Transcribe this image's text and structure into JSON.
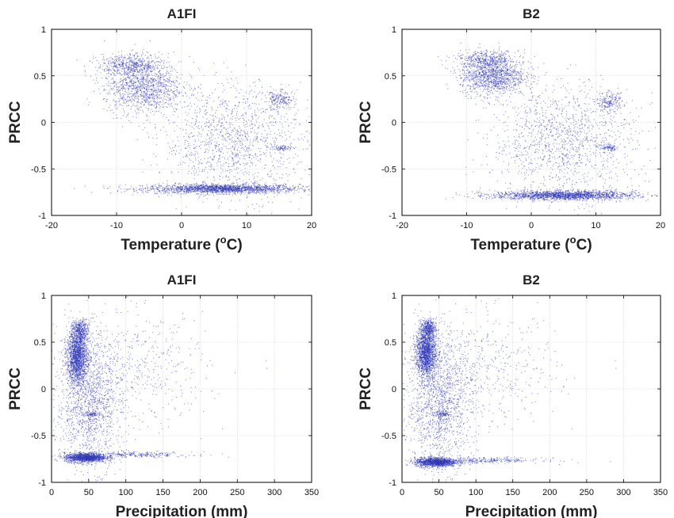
{
  "chart_data": [
    {
      "type": "scatter",
      "title": "A1FI",
      "xlabel": "Temperature (",
      "xlabel_sup": "o",
      "xlabel_end": "C)",
      "ylabel": "PRCC",
      "xlim": [
        -20,
        20
      ],
      "ylim": [
        -1,
        1
      ],
      "xticks": [
        -20,
        -10,
        0,
        10,
        20
      ],
      "yticks": [
        -1,
        -0.5,
        0,
        0.5,
        1
      ],
      "grid": true,
      "marker_color": "#2b33b5",
      "clusters": [
        {
          "x": 6,
          "y": -0.71,
          "sx": 6,
          "sy": 0.025,
          "n": 1800
        },
        {
          "x": -6,
          "y": 0.38,
          "sx": 3,
          "sy": 0.14,
          "n": 1200
        },
        {
          "x": -8,
          "y": 0.62,
          "sx": 2.5,
          "sy": 0.06,
          "n": 500
        },
        {
          "x": 8,
          "y": -0.2,
          "sx": 5.5,
          "sy": 0.3,
          "n": 1300
        },
        {
          "x": 15,
          "y": 0.24,
          "sx": 1.2,
          "sy": 0.05,
          "n": 200
        },
        {
          "x": 15.5,
          "y": -0.27,
          "sx": 0.8,
          "sy": 0.015,
          "n": 80
        }
      ]
    },
    {
      "type": "scatter",
      "title": "B2",
      "xlabel": "Temperature (",
      "xlabel_sup": "o",
      "xlabel_end": "C)",
      "ylabel": "PRCC",
      "xlim": [
        -20,
        20
      ],
      "ylim": [
        -1,
        1
      ],
      "xticks": [
        -20,
        -10,
        0,
        10,
        20
      ],
      "yticks": [
        -1,
        -0.5,
        0,
        0.5,
        1
      ],
      "grid": true,
      "marker_color": "#2b33b5",
      "clusters": [
        {
          "x": 5,
          "y": -0.78,
          "sx": 5.5,
          "sy": 0.025,
          "n": 1800
        },
        {
          "x": -6,
          "y": 0.5,
          "sx": 2.5,
          "sy": 0.1,
          "n": 1200
        },
        {
          "x": -7,
          "y": 0.68,
          "sx": 2.5,
          "sy": 0.05,
          "n": 400
        },
        {
          "x": 5,
          "y": -0.2,
          "sx": 5.5,
          "sy": 0.3,
          "n": 1300
        },
        {
          "x": 12,
          "y": 0.22,
          "sx": 1.0,
          "sy": 0.05,
          "n": 200
        },
        {
          "x": 12,
          "y": -0.27,
          "sx": 0.7,
          "sy": 0.015,
          "n": 80
        }
      ]
    },
    {
      "type": "scatter",
      "title": "A1FI",
      "xlabel": "Precipitation (mm)",
      "ylabel": "PRCC",
      "xlim": [
        0,
        350
      ],
      "ylim": [
        -1,
        1
      ],
      "xticks": [
        0,
        50,
        100,
        150,
        200,
        250,
        300,
        350
      ],
      "yticks": [
        -1,
        -0.5,
        0,
        0.5,
        1
      ],
      "grid": true,
      "marker_color": "#2b33b5",
      "clusters": [
        {
          "x": 34,
          "y": 0.35,
          "sx": 7,
          "sy": 0.14,
          "n": 1600
        },
        {
          "x": 38,
          "y": 0.62,
          "sx": 6,
          "sy": 0.06,
          "n": 400
        },
        {
          "x": 45,
          "y": -0.73,
          "sx": 14,
          "sy": 0.025,
          "n": 1200
        },
        {
          "x": 110,
          "y": -0.7,
          "sx": 40,
          "sy": 0.015,
          "n": 300
        },
        {
          "x": 50,
          "y": -0.15,
          "sx": 22,
          "sy": 0.35,
          "n": 1400
        },
        {
          "x": 110,
          "y": 0.2,
          "sx": 50,
          "sy": 0.3,
          "n": 500
        },
        {
          "x": 55,
          "y": -0.27,
          "sx": 6,
          "sy": 0.012,
          "n": 80
        }
      ]
    },
    {
      "type": "scatter",
      "title": "B2",
      "xlabel": "Precipitation (mm)",
      "ylabel": "PRCC",
      "xlim": [
        0,
        350
      ],
      "ylim": [
        -1,
        1
      ],
      "xticks": [
        0,
        50,
        100,
        150,
        200,
        250,
        300,
        350
      ],
      "yticks": [
        -1,
        -0.5,
        0,
        0.5,
        1
      ],
      "grid": true,
      "marker_color": "#2b33b5",
      "clusters": [
        {
          "x": 32,
          "y": 0.4,
          "sx": 7,
          "sy": 0.13,
          "n": 1600
        },
        {
          "x": 35,
          "y": 0.65,
          "sx": 5,
          "sy": 0.05,
          "n": 350
        },
        {
          "x": 45,
          "y": -0.78,
          "sx": 14,
          "sy": 0.025,
          "n": 1200
        },
        {
          "x": 110,
          "y": -0.76,
          "sx": 40,
          "sy": 0.015,
          "n": 300
        },
        {
          "x": 50,
          "y": -0.15,
          "sx": 22,
          "sy": 0.35,
          "n": 1400
        },
        {
          "x": 110,
          "y": 0.2,
          "sx": 50,
          "sy": 0.3,
          "n": 500
        },
        {
          "x": 55,
          "y": -0.27,
          "sx": 6,
          "sy": 0.012,
          "n": 80
        }
      ]
    }
  ]
}
